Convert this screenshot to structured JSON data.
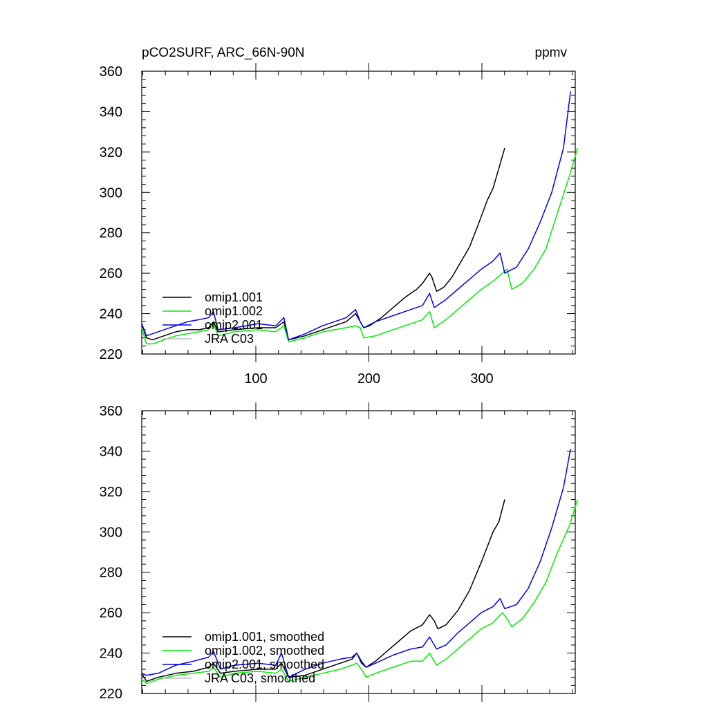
{
  "figure_title": "pCO2SURF, ARC_66N-90N",
  "units": "ppmv",
  "chart_data": [
    {
      "type": "line",
      "title": "pCO2SURF, ARC_66N-90N",
      "units_label": "ppmv",
      "xlim": [
        1,
        370
      ],
      "ylim": [
        220,
        360
      ],
      "yticks": [
        "220",
        "240",
        "260",
        "280",
        "300",
        "320",
        "340",
        "360"
      ],
      "xticks": [
        "100",
        "200",
        "300"
      ],
      "legend_position": "lower-left",
      "series": [
        {
          "name": "omip1.001",
          "color": "#000000",
          "points": [
            [
              1,
              235
            ],
            [
              5,
              228
            ],
            [
              10,
              227
            ],
            [
              20,
              229
            ],
            [
              30,
              231
            ],
            [
              40,
              232
            ],
            [
              50,
              232
            ],
            [
              58,
              233
            ],
            [
              62,
              236
            ],
            [
              66,
              231
            ],
            [
              80,
              232
            ],
            [
              100,
              233
            ],
            [
              115,
              233
            ],
            [
              122,
              236
            ],
            [
              126,
              227
            ],
            [
              140,
              229
            ],
            [
              155,
              232
            ],
            [
              165,
              234
            ],
            [
              175,
              236
            ],
            [
              183,
              240
            ],
            [
              187,
              236
            ],
            [
              190,
              233
            ],
            [
              195,
              234
            ],
            [
              205,
              238
            ],
            [
              215,
              243
            ],
            [
              225,
              248
            ],
            [
              235,
              252
            ],
            [
              240,
              255
            ],
            [
              246,
              260
            ],
            [
              248,
              258
            ],
            [
              252,
              251
            ],
            [
              258,
              253
            ],
            [
              265,
              258
            ],
            [
              272,
              265
            ],
            [
              280,
              273
            ],
            [
              288,
              285
            ],
            [
              295,
              296
            ],
            [
              300,
              302
            ],
            [
              305,
              312
            ],
            [
              310,
              322
            ]
          ]
        },
        {
          "name": "omip1.002",
          "color": "#00ee00",
          "points": [
            [
              1,
              233
            ],
            [
              5,
              225
            ],
            [
              10,
              225
            ],
            [
              20,
              227
            ],
            [
              30,
              229
            ],
            [
              40,
              230
            ],
            [
              50,
              231
            ],
            [
              58,
              232
            ],
            [
              62,
              235
            ],
            [
              66,
              229
            ],
            [
              80,
              231
            ],
            [
              100,
              232
            ],
            [
              115,
              231
            ],
            [
              122,
              234
            ],
            [
              126,
              226
            ],
            [
              140,
              228
            ],
            [
              155,
              231
            ],
            [
              165,
              232
            ],
            [
              175,
              233
            ],
            [
              183,
              234
            ],
            [
              187,
              233
            ],
            [
              190,
              228
            ],
            [
              200,
              229
            ],
            [
              215,
              232
            ],
            [
              230,
              235
            ],
            [
              240,
              237
            ],
            [
              246,
              241
            ],
            [
              250,
              233
            ],
            [
              260,
              237
            ],
            [
              270,
              242
            ],
            [
              280,
              247
            ],
            [
              290,
              252
            ],
            [
              300,
              256
            ],
            [
              308,
              260
            ],
            [
              312,
              262
            ],
            [
              316,
              252
            ],
            [
              325,
              255
            ],
            [
              335,
              262
            ],
            [
              345,
              272
            ],
            [
              355,
              290
            ],
            [
              365,
              308
            ],
            [
              372,
              322
            ]
          ]
        },
        {
          "name": "omip2.001",
          "color": "#0000ee",
          "points": [
            [
              1,
              235
            ],
            [
              5,
              229
            ],
            [
              10,
              230
            ],
            [
              20,
              232
            ],
            [
              30,
              234
            ],
            [
              40,
              236
            ],
            [
              50,
              237
            ],
            [
              58,
              238
            ],
            [
              62,
              241
            ],
            [
              66,
              232
            ],
            [
              80,
              233
            ],
            [
              100,
              235
            ],
            [
              115,
              234
            ],
            [
              122,
              238
            ],
            [
              126,
              227
            ],
            [
              140,
              230
            ],
            [
              155,
              234
            ],
            [
              165,
              236
            ],
            [
              175,
              238
            ],
            [
              183,
              242
            ],
            [
              187,
              236
            ],
            [
              190,
              233
            ],
            [
              200,
              236
            ],
            [
              215,
              239
            ],
            [
              230,
              242
            ],
            [
              240,
              244
            ],
            [
              246,
              250
            ],
            [
              250,
              243
            ],
            [
              260,
              247
            ],
            [
              270,
              252
            ],
            [
              280,
              257
            ],
            [
              290,
              262
            ],
            [
              300,
              266
            ],
            [
              306,
              270
            ],
            [
              310,
              260
            ],
            [
              320,
              263
            ],
            [
              330,
              272
            ],
            [
              340,
              285
            ],
            [
              350,
              300
            ],
            [
              360,
              322
            ],
            [
              366,
              350
            ]
          ]
        },
        {
          "name": "JRA C03",
          "color": "#bbbbbb",
          "points": []
        }
      ]
    },
    {
      "type": "line",
      "xlim": [
        1,
        370
      ],
      "ylim": [
        220,
        360
      ],
      "yticks": [
        "220",
        "240",
        "260",
        "280",
        "300",
        "320",
        "340",
        "360"
      ],
      "xticks": [],
      "legend_position": "lower-left",
      "series": [
        {
          "name": "omip1.001, smoothed",
          "color": "#000000",
          "points": [
            [
              1,
              230
            ],
            [
              5,
              226
            ],
            [
              15,
              228
            ],
            [
              30,
              230
            ],
            [
              45,
              231
            ],
            [
              58,
              233
            ],
            [
              62,
              235
            ],
            [
              68,
              230
            ],
            [
              80,
              231
            ],
            [
              100,
              232
            ],
            [
              115,
              232
            ],
            [
              120,
              235
            ],
            [
              126,
              228
            ],
            [
              140,
              229
            ],
            [
              155,
              232
            ],
            [
              170,
              235
            ],
            [
              180,
              237
            ],
            [
              184,
              240
            ],
            [
              188,
              236
            ],
            [
              192,
              233
            ],
            [
              200,
              236
            ],
            [
              210,
              241
            ],
            [
              220,
              246
            ],
            [
              230,
              251
            ],
            [
              240,
              254
            ],
            [
              246,
              259
            ],
            [
              250,
              256
            ],
            [
              253,
              252
            ],
            [
              260,
              254
            ],
            [
              270,
              261
            ],
            [
              280,
              271
            ],
            [
              290,
              285
            ],
            [
              300,
              300
            ],
            [
              305,
              305
            ],
            [
              310,
              316
            ]
          ]
        },
        {
          "name": "omip1.002, smoothed",
          "color": "#00ee00",
          "points": [
            [
              1,
              227
            ],
            [
              5,
              225
            ],
            [
              15,
              227
            ],
            [
              30,
              229
            ],
            [
              45,
              230
            ],
            [
              58,
              231
            ],
            [
              62,
              233
            ],
            [
              68,
              228
            ],
            [
              80,
              230
            ],
            [
              100,
              231
            ],
            [
              115,
              230
            ],
            [
              120,
              232
            ],
            [
              126,
              226
            ],
            [
              140,
              228
            ],
            [
              155,
              230
            ],
            [
              170,
              232
            ],
            [
              180,
              234
            ],
            [
              184,
              235
            ],
            [
              188,
              232
            ],
            [
              192,
              228
            ],
            [
              200,
              230
            ],
            [
              215,
              233
            ],
            [
              230,
              236
            ],
            [
              240,
              236
            ],
            [
              246,
              240
            ],
            [
              252,
              234
            ],
            [
              260,
              237
            ],
            [
              270,
              242
            ],
            [
              280,
              247
            ],
            [
              290,
              252
            ],
            [
              300,
              255
            ],
            [
              308,
              260
            ],
            [
              312,
              257
            ],
            [
              316,
              253
            ],
            [
              325,
              257
            ],
            [
              335,
              265
            ],
            [
              345,
              275
            ],
            [
              355,
              290
            ],
            [
              365,
              303
            ],
            [
              372,
              316
            ]
          ]
        },
        {
          "name": "omip2.001, smoothed",
          "color": "#0000ee",
          "points": [
            [
              1,
              230
            ],
            [
              5,
              229
            ],
            [
              15,
              230
            ],
            [
              30,
              234
            ],
            [
              45,
              236
            ],
            [
              58,
              238
            ],
            [
              62,
              241
            ],
            [
              68,
              232
            ],
            [
              80,
              234
            ],
            [
              100,
              235
            ],
            [
              115,
              234
            ],
            [
              120,
              240
            ],
            [
              126,
              228
            ],
            [
              140,
              232
            ],
            [
              155,
              235
            ],
            [
              170,
              237
            ],
            [
              180,
              238
            ],
            [
              184,
              240
            ],
            [
              188,
              235
            ],
            [
              192,
              233
            ],
            [
              200,
              235
            ],
            [
              215,
              239
            ],
            [
              230,
              242
            ],
            [
              240,
              243
            ],
            [
              246,
              248
            ],
            [
              252,
              242
            ],
            [
              260,
              244
            ],
            [
              270,
              250
            ],
            [
              280,
              255
            ],
            [
              290,
              260
            ],
            [
              300,
              263
            ],
            [
              306,
              267
            ],
            [
              310,
              262
            ],
            [
              320,
              264
            ],
            [
              330,
              272
            ],
            [
              340,
              285
            ],
            [
              350,
              302
            ],
            [
              360,
              322
            ],
            [
              366,
              341
            ]
          ]
        },
        {
          "name": "JRA C03, smoothed",
          "color": "#bbbbbb",
          "points": []
        }
      ]
    }
  ]
}
